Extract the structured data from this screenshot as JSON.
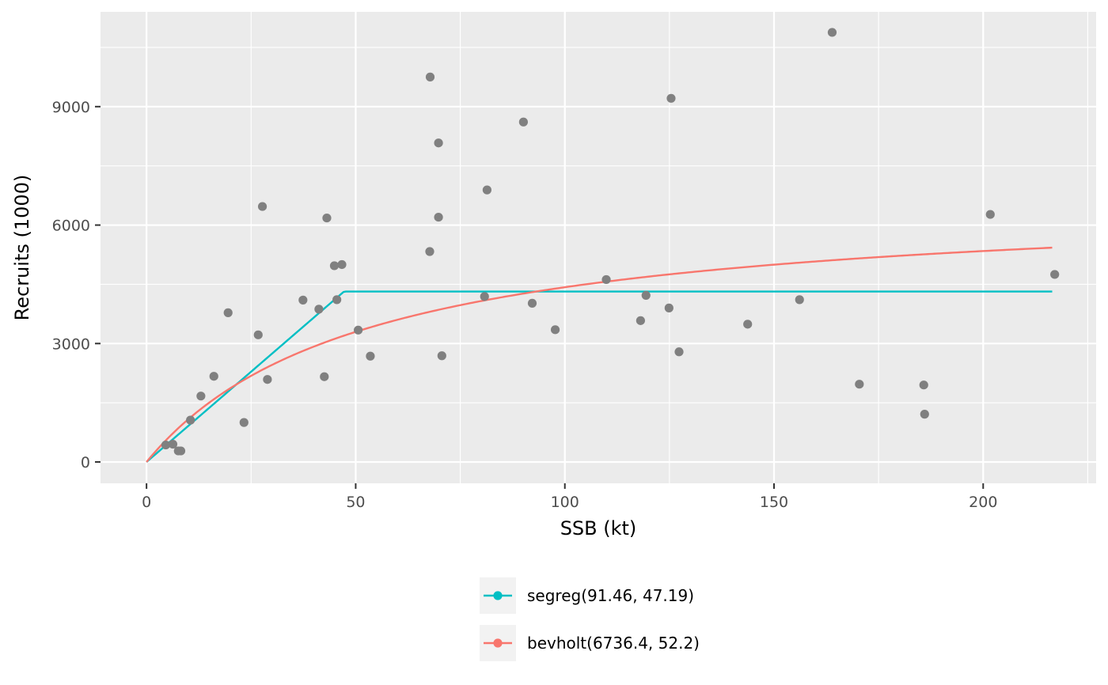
{
  "chart_data": {
    "type": "scatter",
    "xlabel": "SSB (kt)",
    "ylabel": "Recruits (1000)",
    "xlim": [
      -11,
      227
    ],
    "ylim": [
      -540,
      11400
    ],
    "x_ticks": [
      0,
      50,
      100,
      150,
      200
    ],
    "x_tick_labels": [
      "0",
      "50",
      "100",
      "150",
      "200"
    ],
    "y_ticks": [
      0,
      3000,
      6000,
      9000
    ],
    "y_tick_labels": [
      "0",
      "3000",
      "6000",
      "9000"
    ],
    "grid": true,
    "legend_position": "bottom",
    "points": [
      {
        "x": 4.6,
        "y": 430
      },
      {
        "x": 6.3,
        "y": 450
      },
      {
        "x": 7.6,
        "y": 280
      },
      {
        "x": 8.2,
        "y": 280
      },
      {
        "x": 10.5,
        "y": 1060
      },
      {
        "x": 13.0,
        "y": 1670
      },
      {
        "x": 16.1,
        "y": 2170
      },
      {
        "x": 19.5,
        "y": 3780
      },
      {
        "x": 23.3,
        "y": 1000
      },
      {
        "x": 26.7,
        "y": 3220
      },
      {
        "x": 27.7,
        "y": 6470
      },
      {
        "x": 28.9,
        "y": 2090
      },
      {
        "x": 37.4,
        "y": 4100
      },
      {
        "x": 41.2,
        "y": 3870
      },
      {
        "x": 42.5,
        "y": 2160
      },
      {
        "x": 43.1,
        "y": 6180
      },
      {
        "x": 44.9,
        "y": 4970
      },
      {
        "x": 45.5,
        "y": 4110
      },
      {
        "x": 46.7,
        "y": 5000
      },
      {
        "x": 50.6,
        "y": 3340
      },
      {
        "x": 53.5,
        "y": 2680
      },
      {
        "x": 67.7,
        "y": 5330
      },
      {
        "x": 67.8,
        "y": 9750
      },
      {
        "x": 69.8,
        "y": 8080
      },
      {
        "x": 69.8,
        "y": 6200
      },
      {
        "x": 70.6,
        "y": 2690
      },
      {
        "x": 80.8,
        "y": 4190
      },
      {
        "x": 81.4,
        "y": 6890
      },
      {
        "x": 90.1,
        "y": 8610
      },
      {
        "x": 92.2,
        "y": 4020
      },
      {
        "x": 97.7,
        "y": 3350
      },
      {
        "x": 109.9,
        "y": 4620
      },
      {
        "x": 118.1,
        "y": 3580
      },
      {
        "x": 119.4,
        "y": 4220
      },
      {
        "x": 124.9,
        "y": 3900
      },
      {
        "x": 125.4,
        "y": 9210
      },
      {
        "x": 127.3,
        "y": 2790
      },
      {
        "x": 143.7,
        "y": 3490
      },
      {
        "x": 156.1,
        "y": 4110
      },
      {
        "x": 163.9,
        "y": 10880
      },
      {
        "x": 170.4,
        "y": 1970
      },
      {
        "x": 185.8,
        "y": 1950
      },
      {
        "x": 186.0,
        "y": 1210
      },
      {
        "x": 201.7,
        "y": 6270
      },
      {
        "x": 217.1,
        "y": 4750
      }
    ],
    "point_color": "#808080",
    "series": [
      {
        "name": "segreg(91.46, 47.19)",
        "model": "segreg",
        "a": 91.46,
        "b": 47.19,
        "x_range": [
          0,
          216.5
        ],
        "color": "#00BFC4"
      },
      {
        "name": "bevholt(6736.4, 52.2)",
        "model": "bevholt",
        "a": 6736.4,
        "b": 52.2,
        "x_range": [
          0,
          216.5
        ],
        "color": "#F8766D"
      }
    ]
  }
}
